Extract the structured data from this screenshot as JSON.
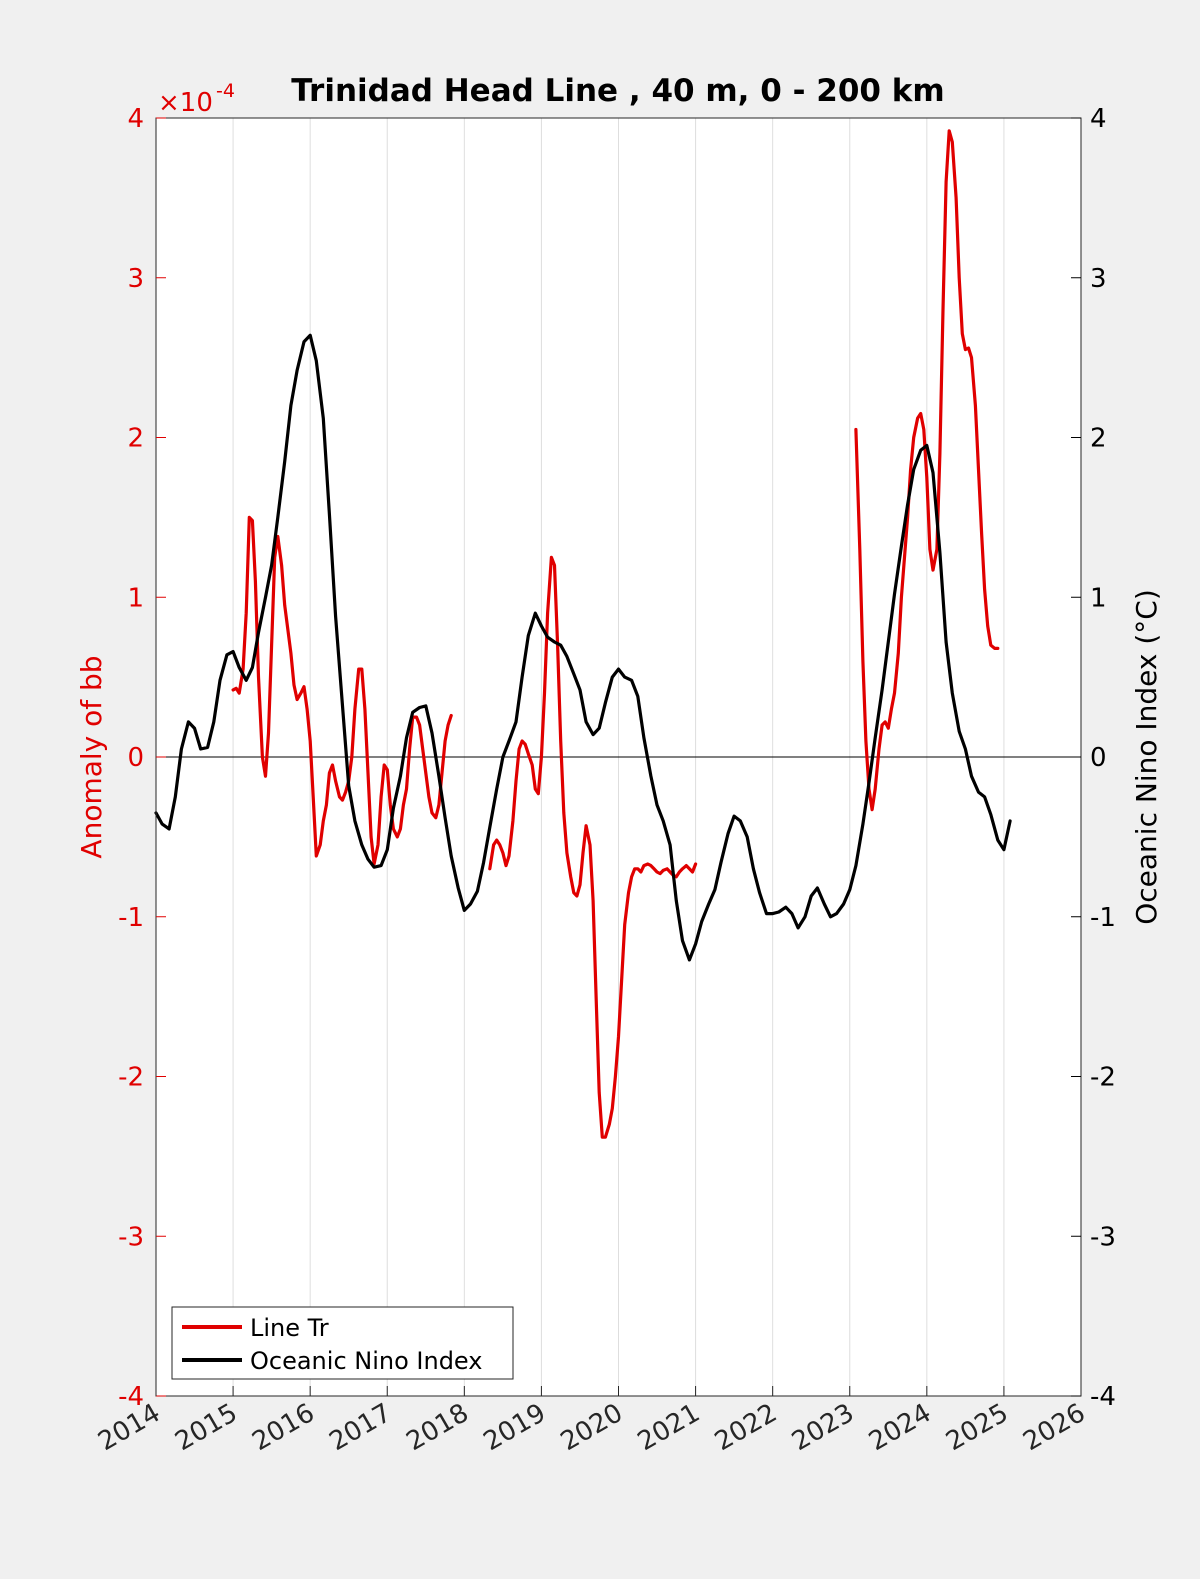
{
  "chart_data": {
    "type": "line",
    "title": "Trinidad Head Line , 40 m, 0 - 200 km",
    "ylabel_left": "Anomaly of bb",
    "ylabel_right": "Oceanic Nino Index (°C)",
    "left_axis_multiplier": "×10",
    "left_axis_exponent": "-4",
    "xlim": [
      2014,
      2026
    ],
    "ylim_left": [
      -4,
      4
    ],
    "ylim_right": [
      -4,
      4
    ],
    "x_ticks": [
      2014,
      2015,
      2016,
      2017,
      2018,
      2019,
      2020,
      2021,
      2022,
      2023,
      2024,
      2025,
      2026
    ],
    "x_tick_labels": [
      "2014",
      "2015",
      "2016",
      "2017",
      "2018",
      "2019",
      "2020",
      "2021",
      "2022",
      "2023",
      "2024",
      "2025",
      "2026"
    ],
    "y_ticks": [
      -4,
      -3,
      -2,
      -1,
      0,
      1,
      2,
      3,
      4
    ],
    "y_tick_labels": [
      "-4",
      "-3",
      "-2",
      "-1",
      "0",
      "1",
      "2",
      "3",
      "4"
    ],
    "grid_x": true,
    "zero_line": true,
    "legend": {
      "position": "bottom-left",
      "entries": [
        "Line Tr",
        "Oceanic Nino Index"
      ]
    },
    "colors": {
      "line_tr": "#e00000",
      "oni": "#000000",
      "left_axis": "#e00000",
      "right_axis": "#000000"
    },
    "series": [
      {
        "name": "Line Tr",
        "axis": "left",
        "color": "#e00000",
        "segments": [
          {
            "x": [
              2015.0,
              2015.04,
              2015.08,
              2015.13,
              2015.17,
              2015.21,
              2015.25,
              2015.29,
              2015.33,
              2015.38,
              2015.42,
              2015.46,
              2015.5,
              2015.54,
              2015.58,
              2015.63,
              2015.67,
              2015.71,
              2015.75,
              2015.79,
              2015.83,
              2015.88,
              2015.92,
              2015.96,
              2016.0,
              2016.04,
              2016.08,
              2016.13,
              2016.17,
              2016.21,
              2016.25,
              2016.29,
              2016.33,
              2016.38,
              2016.42,
              2016.46,
              2016.5,
              2016.54,
              2016.58,
              2016.63,
              2016.67,
              2016.71,
              2016.75,
              2016.79,
              2016.83,
              2016.88,
              2016.92,
              2016.96,
              2017.0,
              2017.04,
              2017.08,
              2017.13,
              2017.17,
              2017.21,
              2017.25,
              2017.29,
              2017.33,
              2017.38,
              2017.42,
              2017.46,
              2017.5,
              2017.54,
              2017.58,
              2017.63,
              2017.67,
              2017.71,
              2017.75,
              2017.79,
              2017.83
            ],
            "y": [
              0.42,
              0.43,
              0.4,
              0.55,
              0.9,
              1.5,
              1.48,
              1.1,
              0.5,
              0.0,
              -0.12,
              0.15,
              0.7,
              1.25,
              1.38,
              1.2,
              0.95,
              0.8,
              0.65,
              0.45,
              0.36,
              0.4,
              0.44,
              0.3,
              0.1,
              -0.25,
              -0.62,
              -0.55,
              -0.4,
              -0.3,
              -0.1,
              -0.05,
              -0.15,
              -0.25,
              -0.27,
              -0.22,
              -0.15,
              0.0,
              0.3,
              0.55,
              0.55,
              0.3,
              -0.1,
              -0.5,
              -0.67,
              -0.55,
              -0.25,
              -0.05,
              -0.08,
              -0.3,
              -0.45,
              -0.5,
              -0.45,
              -0.3,
              -0.2,
              0.05,
              0.25,
              0.25,
              0.2,
              0.05,
              -0.1,
              -0.25,
              -0.35,
              -0.38,
              -0.3,
              -0.1,
              0.1,
              0.2,
              0.26
            ]
          },
          {
            "x": [
              2018.33,
              2018.38,
              2018.42,
              2018.46,
              2018.5,
              2018.54,
              2018.58,
              2018.63,
              2018.67,
              2018.71,
              2018.75,
              2018.79,
              2018.83,
              2018.88,
              2018.92,
              2018.96,
              2019.0,
              2019.04,
              2019.08,
              2019.13,
              2019.17,
              2019.21,
              2019.25,
              2019.29,
              2019.33,
              2019.38,
              2019.42,
              2019.46,
              2019.5,
              2019.54,
              2019.58,
              2019.63,
              2019.67,
              2019.71,
              2019.75,
              2019.79,
              2019.83,
              2019.88,
              2019.92,
              2019.96,
              2020.0,
              2020.04,
              2020.08,
              2020.13,
              2020.17,
              2020.21,
              2020.25,
              2020.29,
              2020.33,
              2020.38,
              2020.42,
              2020.46,
              2020.5,
              2020.54,
              2020.58,
              2020.63,
              2020.67,
              2020.71,
              2020.75,
              2020.79,
              2020.83,
              2020.88,
              2020.92,
              2020.96,
              2021.0
            ],
            "y": [
              -0.7,
              -0.55,
              -0.52,
              -0.55,
              -0.6,
              -0.68,
              -0.62,
              -0.4,
              -0.15,
              0.05,
              0.1,
              0.08,
              0.02,
              -0.05,
              -0.2,
              -0.23,
              0.0,
              0.4,
              0.9,
              1.25,
              1.2,
              0.7,
              0.1,
              -0.35,
              -0.6,
              -0.75,
              -0.85,
              -0.87,
              -0.8,
              -0.6,
              -0.43,
              -0.55,
              -0.9,
              -1.5,
              -2.1,
              -2.38,
              -2.38,
              -2.3,
              -2.2,
              -2.0,
              -1.75,
              -1.4,
              -1.05,
              -0.85,
              -0.75,
              -0.7,
              -0.7,
              -0.72,
              -0.68,
              -0.67,
              -0.68,
              -0.7,
              -0.72,
              -0.73,
              -0.71,
              -0.7,
              -0.72,
              -0.74,
              -0.75,
              -0.72,
              -0.7,
              -0.68,
              -0.7,
              -0.72,
              -0.67
            ]
          },
          {
            "x": [
              2023.08,
              2023.13,
              2023.17,
              2023.21,
              2023.25,
              2023.29,
              2023.33,
              2023.38,
              2023.42,
              2023.46,
              2023.5,
              2023.54,
              2023.58,
              2023.63,
              2023.67,
              2023.71,
              2023.75,
              2023.79,
              2023.83,
              2023.88,
              2023.92,
              2023.96,
              2024.0,
              2024.04,
              2024.08,
              2024.13,
              2024.17,
              2024.21,
              2024.25,
              2024.29,
              2024.33,
              2024.38,
              2024.42,
              2024.46,
              2024.5,
              2024.54,
              2024.58,
              2024.63,
              2024.67,
              2024.71,
              2024.75,
              2024.79,
              2024.83,
              2024.88,
              2024.92
            ],
            "y": [
              2.05,
              1.3,
              0.6,
              0.1,
              -0.2,
              -0.33,
              -0.2,
              0.05,
              0.2,
              0.22,
              0.18,
              0.3,
              0.4,
              0.65,
              1.0,
              1.25,
              1.5,
              1.8,
              2.0,
              2.12,
              2.15,
              2.05,
              1.75,
              1.3,
              1.17,
              1.3,
              1.9,
              2.8,
              3.6,
              3.92,
              3.85,
              3.5,
              3.0,
              2.65,
              2.55,
              2.56,
              2.5,
              2.2,
              1.8,
              1.4,
              1.05,
              0.82,
              0.7,
              0.68,
              0.68
            ]
          }
        ]
      },
      {
        "name": "Oceanic Nino Index",
        "axis": "right",
        "color": "#000000",
        "segments": [
          {
            "x": [
              2014.0,
              2014.08,
              2014.17,
              2014.25,
              2014.33,
              2014.42,
              2014.5,
              2014.58,
              2014.67,
              2014.75,
              2014.83,
              2014.92,
              2015.0,
              2015.08,
              2015.17,
              2015.25,
              2015.33,
              2015.42,
              2015.5,
              2015.58,
              2015.67,
              2015.75,
              2015.83,
              2015.92,
              2016.0,
              2016.08,
              2016.17,
              2016.25,
              2016.33,
              2016.42,
              2016.5,
              2016.58,
              2016.67,
              2016.75,
              2016.83,
              2016.92,
              2017.0,
              2017.08,
              2017.17,
              2017.25,
              2017.33,
              2017.42,
              2017.5,
              2017.58,
              2017.67,
              2017.75,
              2017.83,
              2017.92,
              2018.0,
              2018.08,
              2018.17,
              2018.25,
              2018.33,
              2018.42,
              2018.5,
              2018.58,
              2018.67,
              2018.75,
              2018.83,
              2018.92,
              2019.0,
              2019.08,
              2019.17,
              2019.25,
              2019.33,
              2019.42,
              2019.5,
              2019.58,
              2019.67,
              2019.75,
              2019.83,
              2019.92,
              2020.0,
              2020.08,
              2020.17,
              2020.25,
              2020.33,
              2020.42,
              2020.5,
              2020.58,
              2020.67,
              2020.75,
              2020.83,
              2020.92,
              2021.0,
              2021.08,
              2021.17,
              2021.25,
              2021.33,
              2021.42,
              2021.5,
              2021.58,
              2021.67,
              2021.75,
              2021.83,
              2021.92,
              2022.0,
              2022.08,
              2022.17,
              2022.25,
              2022.33,
              2022.42,
              2022.5,
              2022.58,
              2022.67,
              2022.75,
              2022.83,
              2022.92,
              2023.0,
              2023.08,
              2023.17,
              2023.25,
              2023.33,
              2023.42,
              2023.5,
              2023.58,
              2023.67,
              2023.75,
              2023.83,
              2023.92,
              2024.0,
              2024.08,
              2024.17,
              2024.25,
              2024.33,
              2024.42,
              2024.5,
              2024.58,
              2024.67,
              2024.75,
              2024.83,
              2024.92,
              2025.0,
              2025.08
            ],
            "y": [
              -0.35,
              -0.42,
              -0.45,
              -0.25,
              0.05,
              0.22,
              0.18,
              0.05,
              0.06,
              0.22,
              0.48,
              0.64,
              0.66,
              0.56,
              0.48,
              0.56,
              0.78,
              1.0,
              1.2,
              1.5,
              1.85,
              2.2,
              2.42,
              2.6,
              2.64,
              2.48,
              2.12,
              1.52,
              0.88,
              0.32,
              -0.18,
              -0.4,
              -0.55,
              -0.64,
              -0.69,
              -0.68,
              -0.58,
              -0.32,
              -0.12,
              0.12,
              0.28,
              0.31,
              0.32,
              0.15,
              -0.12,
              -0.38,
              -0.62,
              -0.82,
              -0.96,
              -0.92,
              -0.84,
              -0.66,
              -0.44,
              -0.2,
              0.0,
              0.1,
              0.22,
              0.5,
              0.76,
              0.9,
              0.82,
              0.75,
              0.72,
              0.7,
              0.63,
              0.52,
              0.42,
              0.22,
              0.14,
              0.18,
              0.34,
              0.5,
              0.55,
              0.5,
              0.48,
              0.38,
              0.12,
              -0.12,
              -0.3,
              -0.4,
              -0.55,
              -0.9,
              -1.15,
              -1.27,
              -1.17,
              -1.03,
              -0.92,
              -0.83,
              -0.66,
              -0.48,
              -0.37,
              -0.4,
              -0.5,
              -0.7,
              -0.85,
              -0.98,
              -0.98,
              -0.97,
              -0.94,
              -0.98,
              -1.07,
              -1.0,
              -0.87,
              -0.82,
              -0.92,
              -1.0,
              -0.98,
              -0.92,
              -0.83,
              -0.68,
              -0.42,
              -0.16,
              0.12,
              0.42,
              0.72,
              1.02,
              1.32,
              1.58,
              1.8,
              1.92,
              1.95,
              1.78,
              1.28,
              0.72,
              0.4,
              0.16,
              0.05,
              -0.12,
              -0.22,
              -0.25,
              -0.36,
              -0.52,
              -0.58,
              -0.4
            ]
          }
        ]
      }
    ]
  }
}
